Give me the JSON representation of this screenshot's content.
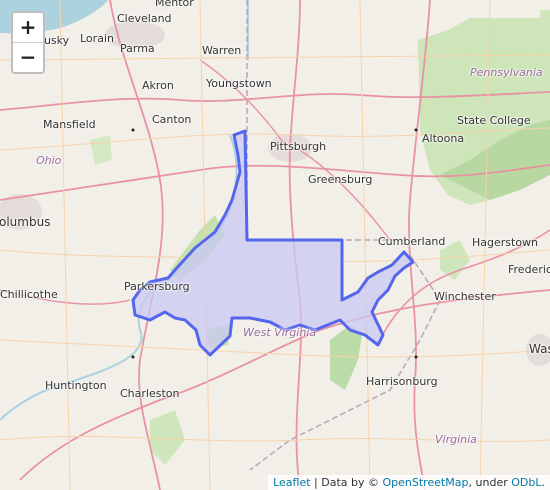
{
  "zoom_controls": {
    "zoom_in": "+",
    "zoom_out": "−"
  },
  "labels": {
    "mentor": "Mentor",
    "cleveland": "Cleveland",
    "sandusky": "ndusky",
    "lorain": "Lorain",
    "parma": "Parma",
    "warren": "Warren",
    "akron": "Akron",
    "youngstown": "Youngstown",
    "pennsylvania": "Pennsylvania",
    "mansfield": "Mansfield",
    "canton": "Canton",
    "state_college": "State College",
    "altoona": "Altoona",
    "pittsburgh": "Pittsburgh",
    "ohio": "Ohio",
    "greensburg": "Greensburg",
    "columbus": "olumbus",
    "cumberland": "Cumberland",
    "hagerstown": "Hagerstown",
    "frederick": "Frederick",
    "chillicothe": "Chillicothe",
    "parkersburg": "Parkersburg",
    "winchester": "Winchester",
    "west_virginia": "West Virginia",
    "washington": "Was",
    "huntington": "Huntington",
    "charleston": "Charleston",
    "harrisonburg": "Harrisonburg",
    "virginia": "Virginia"
  },
  "attribution": {
    "leaflet": "Leaflet",
    "sep": " | Data by © ",
    "osm": "OpenStreetMap",
    "under": ", under ",
    "odbl": "ODbL",
    "end": "."
  },
  "colors": {
    "polygon_stroke": "#5566ee",
    "polygon_fill": "#c8c8f2",
    "forest": "#b9dca0",
    "water": "#aad3df"
  }
}
